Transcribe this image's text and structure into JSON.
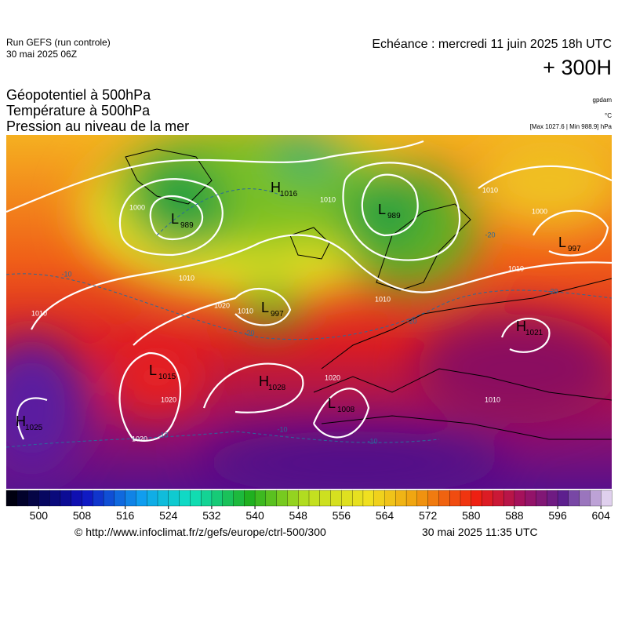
{
  "header": {
    "run": "Run GEFS (run controle)",
    "run_date": "30 mai 2025 06Z",
    "valid": "Echéance : mercredi 11 juin 2025 18h UTC",
    "lead": "+ 300H"
  },
  "fields": [
    {
      "name": "Géopotentiel à 500hPa",
      "unit": "gpdam"
    },
    {
      "name": "Température à 500hPa",
      "unit": "°C"
    },
    {
      "name": "Pression au niveau de la mer",
      "unit": "[Max 1027.6 | Min 988.9] hPa"
    }
  ],
  "pressure_centers": [
    {
      "letter": "H",
      "value": 1016
    },
    {
      "letter": "L",
      "value": 989
    },
    {
      "letter": "L",
      "value": 989
    },
    {
      "letter": "L",
      "value": 997
    },
    {
      "letter": "L",
      "value": 997
    },
    {
      "letter": "H",
      "value": 1021
    },
    {
      "letter": "L",
      "value": 1015
    },
    {
      "letter": "H",
      "value": 1028
    },
    {
      "letter": "L",
      "value": 1008
    },
    {
      "letter": "H",
      "value": 1025
    }
  ],
  "contour_labels": [
    1000,
    1010,
    1020,
    1010,
    1010,
    1020,
    1020,
    1020,
    1010,
    1010,
    1010,
    1000,
    1010,
    1010,
    -10,
    -20,
    -20,
    -20,
    -20,
    -10,
    -10,
    -10
  ],
  "colorbar_ticks": [
    500,
    508,
    516,
    524,
    532,
    540,
    548,
    556,
    564,
    572,
    580,
    588,
    596,
    604
  ],
  "footer": {
    "source": "© http://www.infoclimat.fr/z/gefs/europe/ctrl-500/300",
    "generated": "30 mai 2025 11:35 UTC"
  }
}
